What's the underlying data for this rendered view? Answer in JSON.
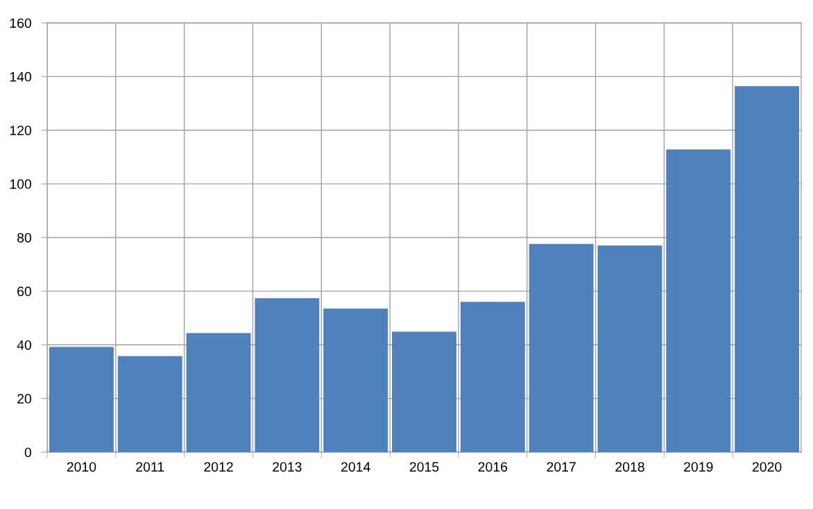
{
  "chart_data": {
    "type": "bar",
    "categories": [
      "2010",
      "2011",
      "2012",
      "2013",
      "2014",
      "2015",
      "2016",
      "2017",
      "2018",
      "2019",
      "2020"
    ],
    "values": [
      39.2,
      35.8,
      44.4,
      57.4,
      53.5,
      44.9,
      56.0,
      77.6,
      77.0,
      112.8,
      136.4
    ],
    "color": "#4f81bd",
    "ylim": [
      0,
      160
    ],
    "yticks": [
      0,
      20,
      40,
      60,
      80,
      100,
      120,
      140,
      160
    ],
    "grid": true
  }
}
